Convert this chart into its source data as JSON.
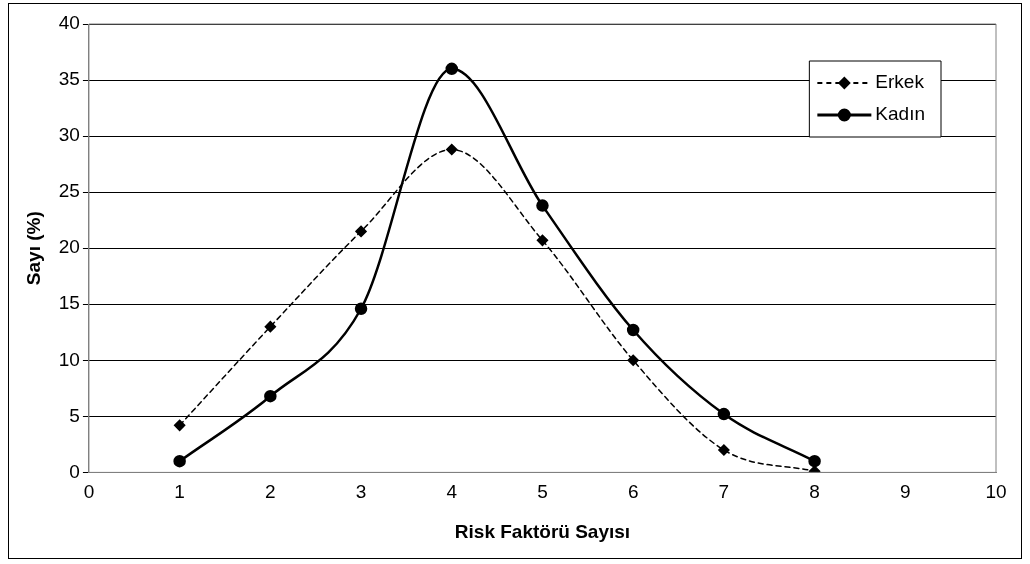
{
  "chart_data": {
    "type": "line",
    "xlabel": "Risk Faktörü Sayısı",
    "ylabel": "Sayı (%)",
    "x": [
      1,
      2,
      3,
      4,
      5,
      6,
      7,
      8
    ],
    "series": [
      {
        "name": "Erkek",
        "color": "#000000",
        "values": [
          4.2,
          13,
          21.5,
          28.8,
          20.7,
          10,
          2,
          0.1
        ],
        "marker": "diamond",
        "line_style": "dashed"
      },
      {
        "name": "Kadın",
        "color": "#000000",
        "values": [
          1,
          6.8,
          14.6,
          36,
          23.8,
          12.7,
          5.2,
          1
        ],
        "marker": "circle",
        "line_style": "solid"
      }
    ],
    "xlim": [
      0,
      10
    ],
    "xticks": [
      0,
      1,
      2,
      3,
      4,
      5,
      6,
      7,
      8,
      9,
      10
    ],
    "ylim": [
      0,
      40
    ],
    "yticks": [
      0,
      5,
      10,
      15,
      20,
      25,
      30,
      35,
      40
    ],
    "grid": "y",
    "legend": "top right"
  }
}
